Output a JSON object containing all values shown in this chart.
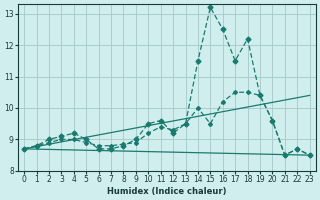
{
  "xlabel": "Humidex (Indice chaleur)",
  "ylabel": "",
  "background_color": "#d0eeee",
  "grid_color": "#aacccc",
  "line_color": "#1a7a6e",
  "xlim": [
    -0.5,
    23.5
  ],
  "ylim": [
    8.0,
    13.3
  ],
  "yticks": [
    8,
    9,
    10,
    11,
    12,
    13
  ],
  "xticks": [
    0,
    1,
    2,
    3,
    4,
    5,
    6,
    7,
    8,
    9,
    10,
    11,
    12,
    13,
    14,
    15,
    16,
    17,
    18,
    19,
    20,
    21,
    22,
    23
  ],
  "series": [
    {
      "x": [
        0,
        1,
        2,
        3,
        4,
        5,
        6,
        7,
        8,
        9,
        10,
        11,
        12,
        13,
        14,
        15,
        16,
        17,
        18,
        19,
        20,
        21,
        22,
        23
      ],
      "y": [
        8.7,
        8.8,
        9.0,
        9.1,
        9.2,
        9.0,
        8.7,
        8.7,
        8.8,
        9.0,
        9.5,
        9.6,
        9.2,
        9.5,
        11.5,
        13.2,
        12.5,
        11.5,
        12.2,
        10.4,
        9.6,
        8.5,
        8.7,
        8.5
      ]
    },
    {
      "x": [
        0,
        1,
        2,
        3,
        4,
        5,
        6,
        7,
        8,
        9,
        10,
        11,
        12,
        13,
        14,
        15,
        16,
        17,
        18,
        19,
        20,
        21,
        22,
        23
      ],
      "y": [
        8.7,
        8.8,
        8.9,
        9.0,
        9.0,
        8.9,
        8.8,
        8.8,
        8.85,
        8.9,
        9.2,
        9.4,
        9.3,
        9.5,
        10.0,
        9.5,
        10.2,
        10.5,
        10.5,
        10.4,
        9.6,
        8.5,
        8.7,
        8.5
      ]
    },
    {
      "x": [
        0,
        23
      ],
      "y": [
        8.7,
        10.4
      ]
    },
    {
      "x": [
        0,
        23
      ],
      "y": [
        8.7,
        8.5
      ]
    }
  ]
}
